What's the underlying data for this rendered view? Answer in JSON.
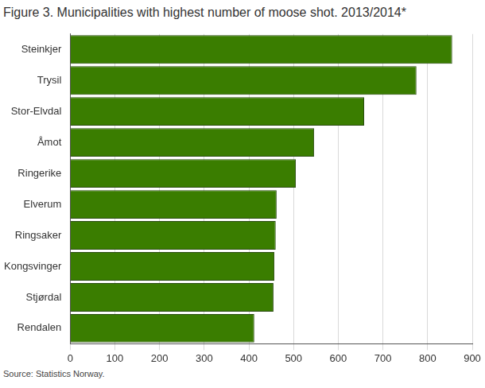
{
  "chart_data": {
    "type": "bar",
    "orientation": "horizontal",
    "title": "Figure 3. Municipalities with highest number of moose shot. 2013/2014*",
    "source": "Source: Statistics Norway.",
    "categories": [
      "Steinkjer",
      "Trysil",
      "Stor-Elvdal",
      "Åmot",
      "Ringerike",
      "Elverum",
      "Ringsaker",
      "Kongsvinger",
      "Stjørdal",
      "Rendalen"
    ],
    "values": [
      855,
      775,
      658,
      546,
      505,
      462,
      460,
      457,
      455,
      412
    ],
    "color": "#3a7d00",
    "xlim": [
      0,
      900
    ],
    "xticks": [
      0,
      100,
      200,
      300,
      400,
      500,
      600,
      700,
      800,
      900
    ],
    "grid": true
  }
}
